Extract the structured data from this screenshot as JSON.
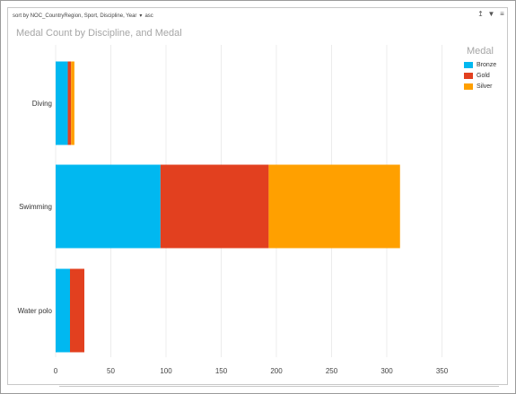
{
  "sort_bar": {
    "sort_by_label": "sort by",
    "fields": "NOC_CountryRegion, Sport, Discipline, Year",
    "direction": "asc"
  },
  "toolbar": {
    "pop_out_icon": "pop-out-icon",
    "filter_icon": "filter-icon",
    "more_options_icon": "more-options-icon"
  },
  "chart_data": {
    "type": "bar",
    "orientation": "horizontal",
    "stacked": true,
    "title": "Medal Count by Discipline, and Medal",
    "xlabel": "",
    "ylabel": "",
    "categories": [
      "Diving",
      "Swimming",
      "Water polo"
    ],
    "series": [
      {
        "name": "Bronze",
        "color": "#01B8F0",
        "values": [
          11,
          95,
          13
        ]
      },
      {
        "name": "Gold",
        "color": "#E2401F",
        "values": [
          3,
          98,
          13
        ]
      },
      {
        "name": "Silver",
        "color": "#FFA000",
        "values": [
          3,
          119,
          0
        ]
      }
    ],
    "xlim": [
      0,
      350
    ],
    "xticks": [
      0,
      50,
      100,
      150,
      200,
      250,
      300,
      350
    ],
    "grid": true,
    "legend": {
      "title": "Medal",
      "position": "right"
    }
  }
}
